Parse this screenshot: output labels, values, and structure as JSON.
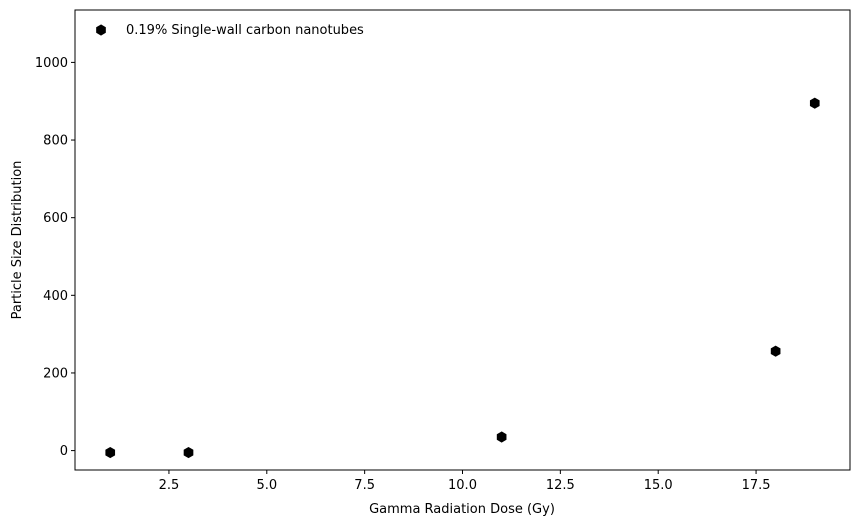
{
  "chart_data": {
    "type": "scatter",
    "title": "",
    "xlabel": "Gamma Radiation Dose (Gy)",
    "ylabel": "Particle Size Distribution",
    "xlim": [
      0.1,
      19.9
    ],
    "ylim": [
      -50,
      1135
    ],
    "xticks": [
      2.5,
      5.0,
      7.5,
      10.0,
      12.5,
      15.0,
      17.5
    ],
    "xtick_labels": [
      "2.5",
      "5.0",
      "7.5",
      "10.0",
      "12.5",
      "15.0",
      "17.5"
    ],
    "yticks": [
      0,
      200,
      400,
      600,
      800,
      1000
    ],
    "ytick_labels": [
      "0",
      "200",
      "400",
      "600",
      "800",
      "1000"
    ],
    "grid": false,
    "legend_position": "top-left",
    "marker": "hexagon",
    "marker_color": "#000000",
    "series": [
      {
        "name": "0.19% Single-wall carbon nanotubes",
        "x": [
          1,
          3,
          11,
          18,
          19
        ],
        "y": [
          -5,
          -5,
          35,
          256,
          895
        ]
      }
    ]
  }
}
